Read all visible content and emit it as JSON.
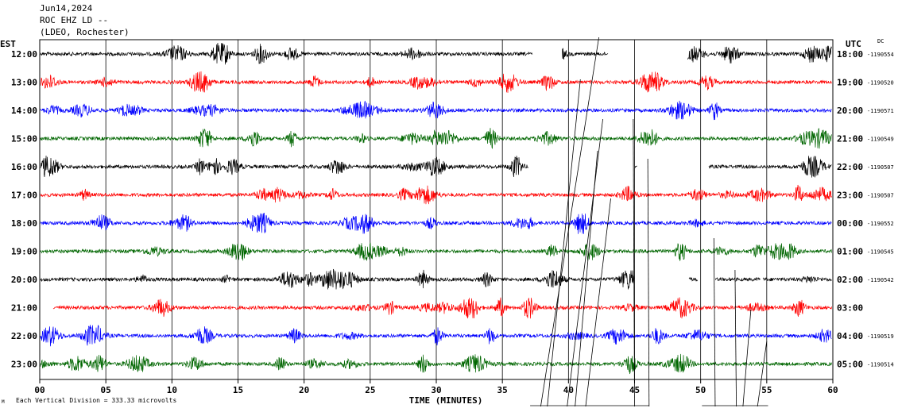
{
  "header": {
    "date": "Jun14,2024",
    "station": "ROC EHZ LD --",
    "network": "(LDEO, Rochester)"
  },
  "left_tz": "EST",
  "right_tz": "UTC",
  "dc_label": "DC",
  "footer": {
    "scale_text": "Each Vertical Division =  333.33 microvolts",
    "mark": "M"
  },
  "colors": {
    "cycle": [
      "#000000",
      "#ff0000",
      "#0000ff",
      "#006600"
    ],
    "grid": "#000000",
    "background": "#ffffff"
  },
  "chart_data": {
    "type": "line",
    "title": "",
    "xlabel": "TIME (MINUTES)",
    "ylabel": "",
    "xlim": [
      0,
      60
    ],
    "x_ticks": [
      "00",
      "05",
      "10",
      "15",
      "20",
      "25",
      "30",
      "35",
      "40",
      "45",
      "50",
      "55",
      "60"
    ],
    "grid": "vertical lines every 5 minutes",
    "rows": [
      {
        "est": "12:00",
        "utc": "18:00",
        "dc": "-1190554"
      },
      {
        "est": "13:00",
        "utc": "19:00",
        "dc": "-1190520"
      },
      {
        "est": "14:00",
        "utc": "20:00",
        "dc": "-1190571"
      },
      {
        "est": "15:00",
        "utc": "21:00",
        "dc": "-1190549"
      },
      {
        "est": "16:00",
        "utc": "22:00",
        "dc": "-1190507"
      },
      {
        "est": "17:00",
        "utc": "23:00",
        "dc": "-1190507"
      },
      {
        "est": "18:00",
        "utc": "00:00",
        "dc": "-1190552"
      },
      {
        "est": "19:00",
        "utc": "01:00",
        "dc": "-1190545"
      },
      {
        "est": "20:00",
        "utc": "02:00",
        "dc": "-1190542"
      },
      {
        "est": "21:00",
        "utc": "03:00",
        "dc": ""
      },
      {
        "est": "22:00",
        "utc": "04:00",
        "dc": "-1190519"
      },
      {
        "est": "23:00",
        "utc": "05:00",
        "dc": "-1190514"
      }
    ]
  }
}
